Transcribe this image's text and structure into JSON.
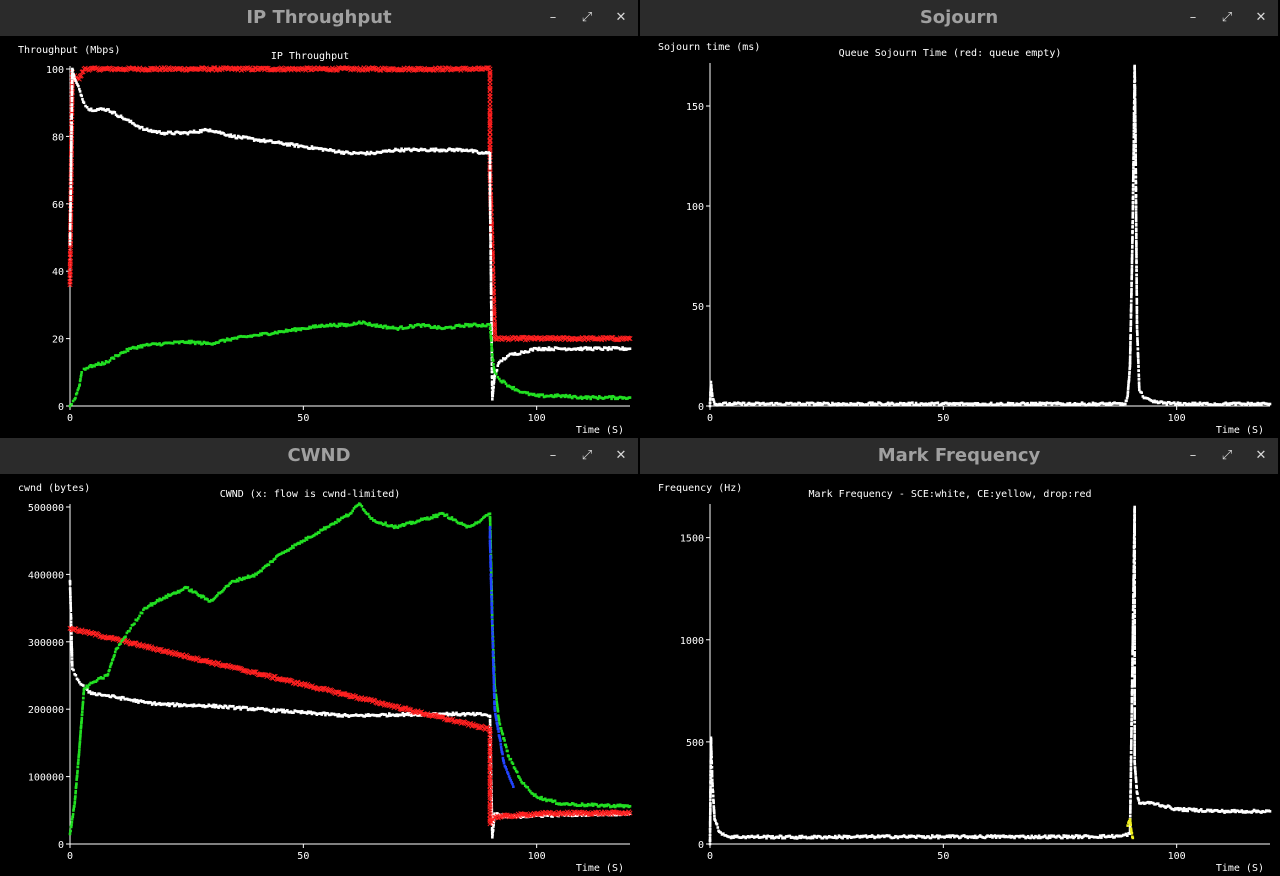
{
  "windows": [
    {
      "id": "throughput",
      "title": "IP Throughput",
      "minimize": "–",
      "maximize": "⤢",
      "close": "✕"
    },
    {
      "id": "sojourn",
      "title": "Sojourn",
      "minimize": "–",
      "maximize": "⤢",
      "close": "✕"
    },
    {
      "id": "cwnd",
      "title": "CWND",
      "minimize": "–",
      "maximize": "⤢",
      "close": "✕"
    },
    {
      "id": "markfreq",
      "title": "Mark Frequency",
      "minimize": "–",
      "maximize": "⤢",
      "close": "✕"
    }
  ],
  "colors": {
    "white": "#ffffff",
    "red": "#ff2020",
    "green": "#22e022",
    "blue": "#2244ff",
    "yellow": "#f0f020"
  },
  "chart_data": [
    {
      "type": "scatter",
      "title": "IP Throughput",
      "ylabel": "Throughput (Mbps)",
      "xlabel": "Time (S)",
      "xlim": [
        0,
        120
      ],
      "ylim": [
        0,
        100
      ],
      "xticks": [
        0,
        50,
        100
      ],
      "yticks": [
        0,
        20,
        40,
        60,
        80,
        100
      ],
      "series": [
        {
          "color": "red",
          "marker": "x",
          "points": [
            [
              0,
              36
            ],
            [
              0.5,
              99
            ],
            [
              1,
              98
            ],
            [
              2,
              97
            ],
            [
              3,
              100
            ],
            [
              10,
              100
            ],
            [
              30,
              100
            ],
            [
              50,
              100
            ],
            [
              70,
              100
            ],
            [
              90,
              100
            ],
            [
              90,
              69
            ],
            [
              91,
              22
            ],
            [
              91,
              20
            ],
            [
              95,
              20
            ],
            [
              110,
              20
            ],
            [
              120,
              20
            ]
          ]
        },
        {
          "color": "white",
          "marker": "dot",
          "points": [
            [
              0,
              48
            ],
            [
              0.5,
              100
            ],
            [
              1,
              97
            ],
            [
              2,
              94
            ],
            [
              3,
              90
            ],
            [
              4,
              88
            ],
            [
              8,
              88
            ],
            [
              12,
              85
            ],
            [
              16,
              82
            ],
            [
              20,
              81
            ],
            [
              25,
              81
            ],
            [
              30,
              82
            ],
            [
              35,
              80
            ],
            [
              40,
              79
            ],
            [
              45,
              78
            ],
            [
              50,
              77
            ],
            [
              55,
              76
            ],
            [
              60,
              75
            ],
            [
              65,
              75
            ],
            [
              70,
              76
            ],
            [
              75,
              76
            ],
            [
              80,
              76
            ],
            [
              85,
              76
            ],
            [
              88,
              75
            ],
            [
              90,
              75
            ],
            [
              90,
              63
            ],
            [
              90.5,
              2
            ],
            [
              91,
              9
            ],
            [
              92,
              13
            ],
            [
              94,
              15
            ],
            [
              97,
              16
            ],
            [
              100,
              17
            ],
            [
              105,
              17
            ],
            [
              110,
              17
            ],
            [
              120,
              17
            ]
          ]
        },
        {
          "color": "green",
          "marker": "dot",
          "points": [
            [
              0,
              0
            ],
            [
              1,
              2
            ],
            [
              2,
              6
            ],
            [
              2.5,
              10
            ],
            [
              3,
              11
            ],
            [
              5,
              12
            ],
            [
              8,
              13
            ],
            [
              10,
              15
            ],
            [
              13,
              17
            ],
            [
              16,
              18
            ],
            [
              20,
              18.5
            ],
            [
              25,
              19
            ],
            [
              30,
              18.5
            ],
            [
              35,
              20
            ],
            [
              40,
              21
            ],
            [
              45,
              22
            ],
            [
              50,
              23
            ],
            [
              55,
              24
            ],
            [
              60,
              24
            ],
            [
              62,
              25
            ],
            [
              65,
              24
            ],
            [
              70,
              23
            ],
            [
              75,
              24
            ],
            [
              80,
              23
            ],
            [
              85,
              24
            ],
            [
              90,
              24
            ],
            [
              90.5,
              15
            ],
            [
              91,
              10
            ],
            [
              92,
              8
            ],
            [
              94,
              6
            ],
            [
              97,
              4
            ],
            [
              100,
              3
            ],
            [
              105,
              3
            ],
            [
              110,
              2.5
            ],
            [
              120,
              2.5
            ]
          ]
        }
      ]
    },
    {
      "type": "scatter",
      "title": "Queue Sojourn Time (red: queue empty)",
      "ylabel": "Sojourn time (ms)",
      "xlabel": "Time (S)",
      "xlim": [
        0,
        120
      ],
      "ylim": [
        0,
        170
      ],
      "xticks": [
        0,
        50,
        100
      ],
      "yticks": [
        0,
        50,
        100,
        150
      ],
      "series": [
        {
          "color": "white",
          "marker": "dot",
          "points": [
            [
              0,
              0
            ],
            [
              0.2,
              12
            ],
            [
              0.5,
              5
            ],
            [
              1,
              1
            ],
            [
              5,
              1
            ],
            [
              20,
              1
            ],
            [
              40,
              1
            ],
            [
              60,
              1
            ],
            [
              80,
              1
            ],
            [
              89,
              1
            ],
            [
              89.5,
              5
            ],
            [
              90,
              20
            ],
            [
              90.5,
              80
            ],
            [
              90.8,
              130
            ],
            [
              91,
              170
            ],
            [
              91.2,
              130
            ],
            [
              91.5,
              40
            ],
            [
              92,
              8
            ],
            [
              93,
              4
            ],
            [
              95,
              2
            ],
            [
              100,
              1
            ],
            [
              110,
              1
            ],
            [
              120,
              1
            ]
          ]
        }
      ]
    },
    {
      "type": "scatter",
      "title": "CWND (x: flow is cwnd-limited)",
      "ylabel": "cwnd (bytes)",
      "xlabel": "Time (S)",
      "xlim": [
        0,
        120
      ],
      "ylim": [
        0,
        500000
      ],
      "xticks": [
        0,
        50,
        100
      ],
      "yticks": [
        0,
        100000,
        200000,
        300000,
        400000,
        500000
      ],
      "series": [
        {
          "color": "white",
          "marker": "dot",
          "points": [
            [
              0,
              390000
            ],
            [
              0.5,
              260000
            ],
            [
              2,
              240000
            ],
            [
              4,
              225000
            ],
            [
              8,
              220000
            ],
            [
              12,
              215000
            ],
            [
              16,
              210000
            ],
            [
              20,
              207000
            ],
            [
              30,
              205000
            ],
            [
              40,
              200000
            ],
            [
              50,
              195000
            ],
            [
              60,
              190000
            ],
            [
              70,
              192000
            ],
            [
              80,
              193000
            ],
            [
              89,
              192000
            ],
            [
              90,
              190000
            ],
            [
              90.5,
              10000
            ],
            [
              91,
              45000
            ],
            [
              93,
              40000
            ],
            [
              100,
              42000
            ],
            [
              110,
              44000
            ],
            [
              120,
              45000
            ]
          ]
        },
        {
          "color": "red",
          "marker": "x",
          "points": [
            [
              0,
              320000
            ],
            [
              90,
              170000
            ],
            [
              90,
              110000
            ],
            [
              90,
              80000
            ],
            [
              90,
              30000
            ],
            [
              91,
              40000
            ],
            [
              95,
              42000
            ],
            [
              100,
              45000
            ],
            [
              110,
              46000
            ],
            [
              120,
              46000
            ]
          ]
        },
        {
          "color": "green",
          "marker": "dot",
          "points": [
            [
              0,
              15000
            ],
            [
              1,
              60000
            ],
            [
              2,
              140000
            ],
            [
              3,
              230000
            ],
            [
              5,
              240000
            ],
            [
              8,
              250000
            ],
            [
              10,
              290000
            ],
            [
              13,
              320000
            ],
            [
              16,
              350000
            ],
            [
              20,
              365000
            ],
            [
              25,
              380000
            ],
            [
              30,
              360000
            ],
            [
              35,
              390000
            ],
            [
              40,
              400000
            ],
            [
              45,
              430000
            ],
            [
              50,
              450000
            ],
            [
              55,
              470000
            ],
            [
              60,
              490000
            ],
            [
              62,
              505000
            ],
            [
              65,
              480000
            ],
            [
              70,
              470000
            ],
            [
              75,
              480000
            ],
            [
              80,
              490000
            ],
            [
              85,
              470000
            ],
            [
              88,
              480000
            ],
            [
              90,
              490000
            ],
            [
              90.5,
              330000
            ],
            [
              91,
              235000
            ],
            [
              92,
              180000
            ],
            [
              94,
              130000
            ],
            [
              97,
              90000
            ],
            [
              100,
              70000
            ],
            [
              105,
              60000
            ],
            [
              110,
              58000
            ],
            [
              120,
              56000
            ]
          ]
        },
        {
          "color": "blue",
          "marker": "dot",
          "points": [
            [
              90,
              470000
            ],
            [
              90,
              450000
            ],
            [
              90.5,
              320000
            ],
            [
              91,
              200000
            ],
            [
              92,
              160000
            ],
            [
              93,
              120000
            ],
            [
              95,
              85000
            ]
          ]
        }
      ]
    },
    {
      "type": "scatter",
      "title": "Mark Frequency - SCE:white, CE:yellow, drop:red",
      "ylabel": "Frequency (Hz)",
      "xlabel": "Time (S)",
      "xlim": [
        0,
        120
      ],
      "ylim": [
        0,
        1650
      ],
      "xticks": [
        0,
        50,
        100
      ],
      "yticks": [
        0,
        500,
        1000,
        1500
      ],
      "series": [
        {
          "color": "white",
          "marker": "dot",
          "points": [
            [
              0,
              0
            ],
            [
              0.2,
              520
            ],
            [
              0.5,
              300
            ],
            [
              1,
              120
            ],
            [
              2,
              60
            ],
            [
              4,
              35
            ],
            [
              10,
              35
            ],
            [
              20,
              33
            ],
            [
              30,
              35
            ],
            [
              40,
              36
            ],
            [
              50,
              35
            ],
            [
              60,
              36
            ],
            [
              70,
              35
            ],
            [
              80,
              36
            ],
            [
              88,
              38
            ],
            [
              90,
              50
            ],
            [
              91,
              1650
            ],
            [
              91,
              1330
            ],
            [
              91,
              1260
            ],
            [
              91,
              820
            ],
            [
              91,
              550
            ],
            [
              91,
              400
            ],
            [
              91.5,
              250
            ],
            [
              92,
              200
            ],
            [
              95,
              200
            ],
            [
              100,
              170
            ],
            [
              105,
              165
            ],
            [
              110,
              160
            ],
            [
              120,
              160
            ]
          ]
        },
        {
          "color": "yellow",
          "marker": "dot",
          "points": [
            [
              89.5,
              90
            ],
            [
              90,
              120
            ],
            [
              90.3,
              60
            ],
            [
              90.6,
              30
            ]
          ]
        }
      ]
    }
  ]
}
